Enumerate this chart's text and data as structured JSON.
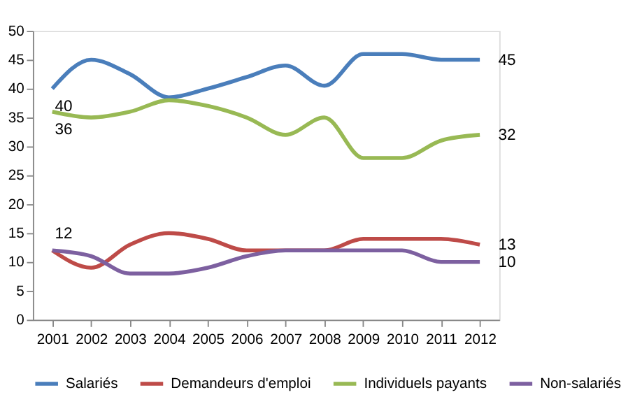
{
  "chart_data": {
    "type": "line",
    "categories": [
      "2001",
      "2002",
      "2003",
      "2004",
      "2005",
      "2006",
      "2007",
      "2008",
      "2009",
      "2010",
      "2011",
      "2012"
    ],
    "series": [
      {
        "name": "Salariés",
        "color": "#4a7ebb",
        "values": [
          40,
          45,
          42.5,
          38.5,
          40,
          42,
          44,
          40.5,
          46,
          46,
          45,
          45
        ]
      },
      {
        "name": "Demandeurs d'emploi",
        "color": "#be4b48",
        "values": [
          12,
          9,
          13,
          15,
          14,
          12,
          12,
          12,
          14,
          14,
          14,
          13
        ]
      },
      {
        "name": "Individuels payants",
        "color": "#98b954",
        "values": [
          36,
          35,
          36,
          38,
          37,
          35,
          32,
          35,
          28,
          28,
          31,
          32
        ]
      },
      {
        "name": "Non-salariés",
        "color": "#7d60a0",
        "values": [
          12,
          11,
          8,
          8,
          9,
          11,
          12,
          12,
          12,
          12,
          10,
          10
        ]
      }
    ],
    "ylim": [
      0,
      50
    ],
    "yticks": [
      0,
      5,
      10,
      15,
      20,
      25,
      30,
      35,
      40,
      45,
      50
    ],
    "grid": false,
    "legend": "bottom",
    "marker": "none",
    "line_style": "solid",
    "annotations": [
      {
        "text": "40",
        "x": "2001",
        "y": 40
      },
      {
        "text": "36",
        "x": "2001",
        "y": 36
      },
      {
        "text": "12",
        "x": "2001",
        "y": 12
      },
      {
        "text": "45",
        "x": "2012",
        "y": 45
      },
      {
        "text": "32",
        "x": "2012",
        "y": 32
      },
      {
        "text": "13",
        "x": "2012",
        "y": 13
      },
      {
        "text": "10",
        "x": "2012",
        "y": 10
      }
    ]
  }
}
